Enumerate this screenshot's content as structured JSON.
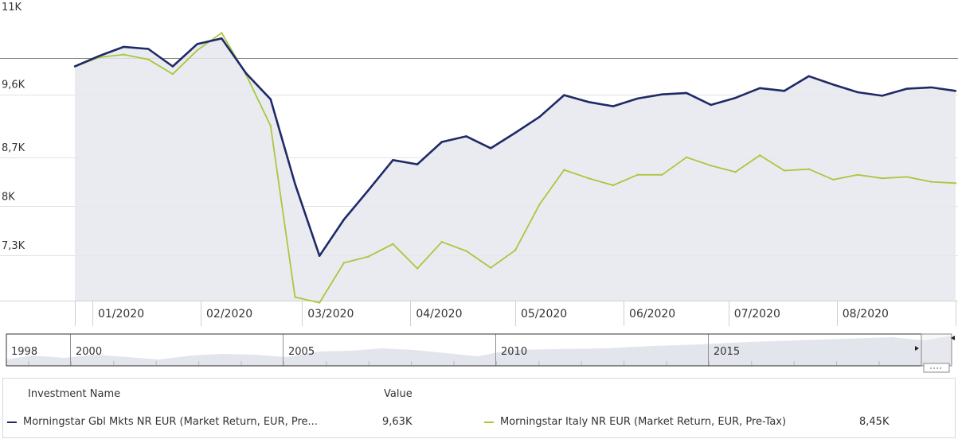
{
  "chart_data": {
    "type": "line",
    "y_ticks": [
      "11K",
      "9,6K",
      "8,7K",
      "8K",
      "7,3K"
    ],
    "y_tick_values": [
      11000,
      9600,
      8700,
      8000,
      7300
    ],
    "ylim": [
      6650,
      10950
    ],
    "x_labels": [
      "01/2020",
      "02/2020",
      "03/2020",
      "04/2020",
      "05/2020",
      "06/2020",
      "07/2020",
      "08/2020"
    ],
    "x_label_dates": [
      "2020-01-01",
      "2020-02-01",
      "2020-03-01",
      "2020-04-01",
      "2020-05-01",
      "2020-06-01",
      "2020-07-01",
      "2020-08-01"
    ],
    "x": [
      "2019-12-27",
      "2020-01-03",
      "2020-01-10",
      "2020-01-17",
      "2020-01-24",
      "2020-01-31",
      "2020-02-07",
      "2020-02-14",
      "2020-02-21",
      "2020-02-28",
      "2020-03-06",
      "2020-03-13",
      "2020-03-20",
      "2020-03-27",
      "2020-04-03",
      "2020-04-10",
      "2020-04-17",
      "2020-04-24",
      "2020-05-01",
      "2020-05-08",
      "2020-05-15",
      "2020-05-22",
      "2020-05-29",
      "2020-06-05",
      "2020-06-12",
      "2020-06-19",
      "2020-06-26",
      "2020-07-03",
      "2020-07-10",
      "2020-07-17",
      "2020-07-24",
      "2020-07-31",
      "2020-08-07",
      "2020-08-14",
      "2020-08-21",
      "2020-08-28",
      "2020-09-04"
    ],
    "series": [
      {
        "name": "Morningstar Gbl Mkts NR EUR (Market Return, EUR, Pre...",
        "color": "#1f2a66",
        "values": [
          10000,
          10150,
          10280,
          10250,
          10000,
          10320,
          10400,
          9900,
          9530,
          8320,
          7290,
          7810,
          8230,
          8660,
          8600,
          8920,
          9000,
          8830,
          9050,
          9280,
          9590,
          9490,
          9430,
          9540,
          9600,
          9620,
          9450,
          9550,
          9690,
          9650,
          9860,
          9740,
          9630,
          9580,
          9680,
          9700,
          9650
        ]
      },
      {
        "name": "Morningstar Italy NR EUR (Market Return, EUR, Pre-Tax)",
        "color": "#a8c83c",
        "values": [
          10000,
          10130,
          10170,
          10100,
          9890,
          10230,
          10480,
          9880,
          9150,
          6700,
          6620,
          7190,
          7280,
          7460,
          7110,
          7490,
          7360,
          7120,
          7370,
          8030,
          8520,
          8400,
          8300,
          8450,
          8450,
          8700,
          8580,
          8490,
          8730,
          8510,
          8530,
          8380,
          8450,
          8400,
          8420,
          8350,
          8330
        ]
      }
    ],
    "grid": true,
    "legend": "bottom"
  },
  "navigator": {
    "year_labels": [
      "1998",
      "2000",
      "2005",
      "2010",
      "2015"
    ]
  },
  "legend": {
    "header_name": "Investment Name",
    "header_value": "Value",
    "rows": [
      {
        "name": "Morningstar Gbl Mkts NR EUR (Market Return, EUR, Pre...",
        "value": "9,63K"
      },
      {
        "name": "Morningstar Italy NR EUR (Market Return, EUR, Pre-Tax)",
        "value": "8,45K"
      }
    ]
  }
}
